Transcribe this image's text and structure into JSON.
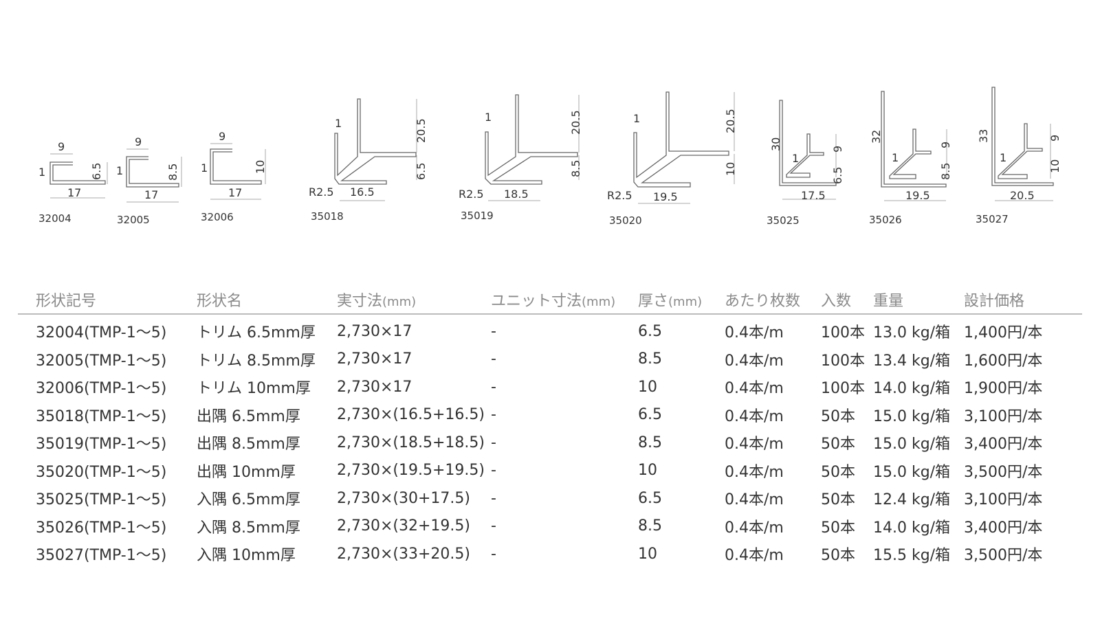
{
  "diagrams": [
    {
      "code": "32004",
      "dims": [
        "9",
        "1",
        "6.5",
        "17"
      ]
    },
    {
      "code": "32005",
      "dims": [
        "9",
        "1",
        "8.5",
        "17"
      ]
    },
    {
      "code": "32006",
      "dims": [
        "9",
        "1",
        "10",
        "17"
      ]
    },
    {
      "code": "35018",
      "dims": [
        "1",
        "20.5",
        "6.5",
        "R2.5",
        "16.5"
      ]
    },
    {
      "code": "35019",
      "dims": [
        "1",
        "20.5",
        "8.5",
        "R2.5",
        "18.5"
      ]
    },
    {
      "code": "35020",
      "dims": [
        "1",
        "20.5",
        "10",
        "R2.5",
        "19.5"
      ]
    },
    {
      "code": "35025",
      "dims": [
        "30",
        "1",
        "9",
        "6.5",
        "17.5"
      ]
    },
    {
      "code": "35026",
      "dims": [
        "32",
        "1",
        "9",
        "8.5",
        "19.5"
      ]
    },
    {
      "code": "35027",
      "dims": [
        "33",
        "1",
        "9",
        "10",
        "20.5"
      ]
    }
  ],
  "table": {
    "headers": {
      "code": "形状記号",
      "name": "形状名",
      "size": "実寸法",
      "size_unit": "(mm)",
      "unit_size": "ユニット寸法",
      "unit_size_unit": "(mm)",
      "thickness": "厚さ",
      "thickness_unit": "(mm)",
      "per": "あたり枚数",
      "qty": "入数",
      "weight": "重量",
      "price": "設計価格"
    },
    "rows": [
      {
        "code": "32004(TMP-1〜5)",
        "name": "トリム 6.5mm厚",
        "size": "2,730×17",
        "unit": "-",
        "thick": "6.5",
        "per": "0.4本/m",
        "qty": "100本",
        "weight": "13.0 kg/箱",
        "price": "1,400円/本"
      },
      {
        "code": "32005(TMP-1〜5)",
        "name": "トリム 8.5mm厚",
        "size": "2,730×17",
        "unit": "-",
        "thick": "8.5",
        "per": "0.4本/m",
        "qty": "100本",
        "weight": "13.4 kg/箱",
        "price": "1,600円/本"
      },
      {
        "code": "32006(TMP-1〜5)",
        "name": "トリム 10mm厚",
        "size": "2,730×17",
        "unit": "-",
        "thick": "10",
        "per": "0.4本/m",
        "qty": "100本",
        "weight": "14.0 kg/箱",
        "price": "1,900円/本"
      },
      {
        "code": "35018(TMP-1〜5)",
        "name": "出隅 6.5mm厚",
        "size": "2,730×(16.5+16.5)",
        "unit": "-",
        "thick": "6.5",
        "per": "0.4本/m",
        "qty": "50本",
        "weight": "15.0 kg/箱",
        "price": "3,100円/本"
      },
      {
        "code": "35019(TMP-1〜5)",
        "name": "出隅 8.5mm厚",
        "size": "2,730×(18.5+18.5)",
        "unit": "-",
        "thick": "8.5",
        "per": "0.4本/m",
        "qty": "50本",
        "weight": "15.0 kg/箱",
        "price": "3,400円/本"
      },
      {
        "code": "35020(TMP-1〜5)",
        "name": "出隅 10mm厚",
        "size": "2,730×(19.5+19.5)",
        "unit": "-",
        "thick": "10",
        "per": "0.4本/m",
        "qty": "50本",
        "weight": "15.0 kg/箱",
        "price": "3,500円/本"
      },
      {
        "code": "35025(TMP-1〜5)",
        "name": "入隅 6.5mm厚",
        "size": "2,730×(30+17.5)",
        "unit": "-",
        "thick": "6.5",
        "per": "0.4本/m",
        "qty": "50本",
        "weight": "12.4 kg/箱",
        "price": "3,100円/本"
      },
      {
        "code": "35026(TMP-1〜5)",
        "name": "入隅 8.5mm厚",
        "size": "2,730×(32+19.5)",
        "unit": "-",
        "thick": "8.5",
        "per": "0.4本/m",
        "qty": "50本",
        "weight": "14.0 kg/箱",
        "price": "3,400円/本"
      },
      {
        "code": "35027(TMP-1〜5)",
        "name": "入隅 10mm厚",
        "size": "2,730×(33+20.5)",
        "unit": "-",
        "thick": "10",
        "per": "0.4本/m",
        "qty": "50本",
        "weight": "15.5 kg/箱",
        "price": "3,500円/本"
      }
    ]
  }
}
